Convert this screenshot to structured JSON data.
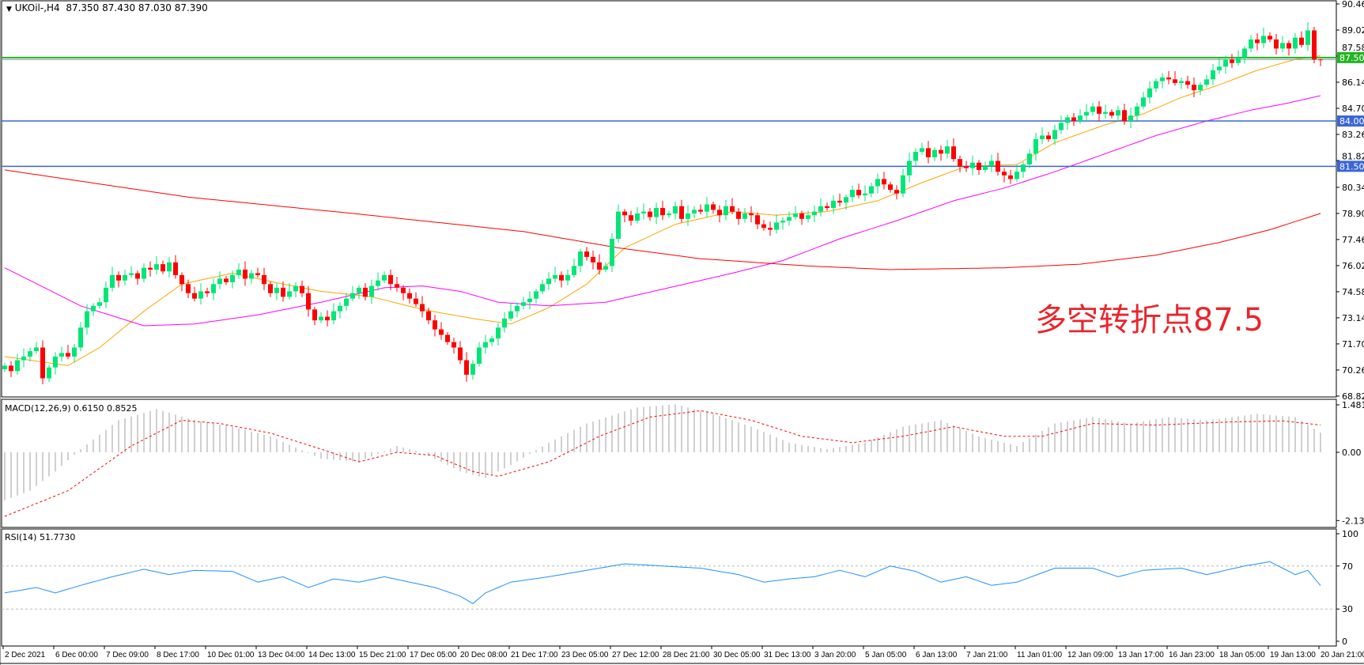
{
  "header": {
    "arrow": "▼",
    "symbol": "UKOil-,H4",
    "ohlc": "87.350 87.430 87.030 87.390"
  },
  "annotation": "多空转折点87.5",
  "macd_label": "MACD(12,26,9) 0.6150 0.8525",
  "rsi_label": "RSI(14) 51.7730",
  "colors": {
    "up": "#00e676",
    "down": "#ff0000",
    "ma_fast": "#ffa500",
    "ma_mid": "#ff00ff",
    "ma_slow": "#ff0000",
    "level_green": "#22b422",
    "level_blue": "#3a66d8",
    "macd_hist": "#c0c0c0",
    "macd_signal": "#ff0000",
    "rsi": "#1e90ff"
  },
  "chart_data": [
    {
      "type": "candlestick",
      "title": "UKOil-,H4",
      "yticks": [
        "90.460",
        "89.020",
        "87.580",
        "86.140",
        "84.700",
        "83.260",
        "81.820",
        "80.340",
        "78.900",
        "77.460",
        "76.020",
        "74.580",
        "73.140",
        "71.700",
        "70.260",
        "68.820"
      ],
      "ylim": [
        68.82,
        90.46
      ],
      "xticks": [
        "2 Dec 2021",
        "6 Dec 00:00",
        "7 Dec 09:00",
        "8 Dec 17:00",
        "10 Dec 01:00",
        "13 Dec 04:00",
        "14 Dec 13:00",
        "15 Dec 21:00",
        "17 Dec 05:00",
        "20 Dec 08:00",
        "21 Dec 17:00",
        "23 Dec 05:00",
        "27 Dec 12:00",
        "28 Dec 21:00",
        "30 Dec 05:00",
        "31 Dec 13:00",
        "3 Jan 20:00",
        "5 Jan 05:00",
        "6 Jan 13:00",
        "7 Jan 21:00",
        "11 Jan 01:00",
        "12 Jan 09:00",
        "13 Jan 17:00",
        "16 Jan 23:00",
        "18 Jan 05:00",
        "19 Jan 13:00",
        "20 Jan 21:00"
      ],
      "last": {
        "open": 87.35,
        "high": 87.43,
        "low": 87.03,
        "close": 87.39
      },
      "closes": [
        70.5,
        70.2,
        70.8,
        71.0,
        71.3,
        71.5,
        69.8,
        70.4,
        71.0,
        71.2,
        71.0,
        71.5,
        72.6,
        73.5,
        73.8,
        74.0,
        74.8,
        75.5,
        75.2,
        75.5,
        75.6,
        75.3,
        75.9,
        75.8,
        76.1,
        75.7,
        76.2,
        75.5,
        75.0,
        74.5,
        74.2,
        74.6,
        74.5,
        75.0,
        75.3,
        75.1,
        75.5,
        75.8,
        75.3,
        75.6,
        75.5,
        75.0,
        74.5,
        74.8,
        74.3,
        74.6,
        74.9,
        74.5,
        73.6,
        73.0,
        73.2,
        73.0,
        73.5,
        73.8,
        74.2,
        74.5,
        74.8,
        74.3,
        74.9,
        75.2,
        75.5,
        75.0,
        74.8,
        74.5,
        74.2,
        73.9,
        73.5,
        73.0,
        72.5,
        72.2,
        71.8,
        71.5,
        70.8,
        70.0,
        70.6,
        71.5,
        71.8,
        72.0,
        72.6,
        73.1,
        73.5,
        73.8,
        74.0,
        74.2,
        74.6,
        75.0,
        75.3,
        75.5,
        75.2,
        75.5,
        76.0,
        76.8,
        76.5,
        76.2,
        75.8,
        76.0,
        77.5,
        79.0,
        78.8,
        78.5,
        78.9,
        79.0,
        78.7,
        79.2,
        78.8,
        78.9,
        79.3,
        78.6,
        78.9,
        79.1,
        79.0,
        79.4,
        79.1,
        78.8,
        79.3,
        79.0,
        78.6,
        78.9,
        78.8,
        78.3,
        78.1,
        78.0,
        78.4,
        78.5,
        78.7,
        78.9,
        78.6,
        78.8,
        79.0,
        79.3,
        79.2,
        79.6,
        79.5,
        79.8,
        80.2,
        79.9,
        80.0,
        80.4,
        80.8,
        80.5,
        80.2,
        80.0,
        81.0,
        81.8,
        82.3,
        82.5,
        82.0,
        82.4,
        82.2,
        82.6,
        81.9,
        81.5,
        81.4,
        81.7,
        81.3,
        81.5,
        81.8,
        81.2,
        81.0,
        80.8,
        81.2,
        81.6,
        82.2,
        83.0,
        83.2,
        83.0,
        83.5,
        83.9,
        84.2,
        84.0,
        84.3,
        84.5,
        84.8,
        84.4,
        84.5,
        84.3,
        84.6,
        84.0,
        84.3,
        84.8,
        85.3,
        85.8,
        86.2,
        86.4,
        86.3,
        86.1,
        86.2,
        86.0,
        85.7,
        86.0,
        86.3,
        86.8,
        87.0,
        87.4,
        87.2,
        87.5,
        88.0,
        88.5,
        88.3,
        88.7,
        88.5,
        88.0,
        88.3,
        88.0,
        88.6,
        88.2,
        89.0,
        87.4,
        87.39
      ],
      "levels": [
        {
          "value": 87.5,
          "label": "87.500",
          "color": "level_green"
        },
        {
          "value": 84.0,
          "label": "84.000",
          "color": "level_blue"
        },
        {
          "value": 81.5,
          "label": "81.500",
          "color": "level_blue"
        }
      ],
      "moving_averages": [
        {
          "color": "ma_fast",
          "points": [
            [
              0,
              71.0
            ],
            [
              10,
              70.5
            ],
            [
              15,
              71.5
            ],
            [
              22,
              73.5
            ],
            [
              28,
              75.0
            ],
            [
              36,
              75.6
            ],
            [
              44,
              75.0
            ],
            [
              50,
              74.6
            ],
            [
              58,
              74.3
            ],
            [
              66,
              73.6
            ],
            [
              74,
              73.1
            ],
            [
              80,
              72.8
            ],
            [
              86,
              73.7
            ],
            [
              92,
              75.0
            ],
            [
              98,
              77.0
            ],
            [
              106,
              78.3
            ],
            [
              115,
              79.0
            ],
            [
              122,
              78.8
            ],
            [
              130,
              79.0
            ],
            [
              138,
              79.6
            ],
            [
              145,
              80.6
            ],
            [
              152,
              81.5
            ],
            [
              160,
              81.6
            ],
            [
              166,
              82.8
            ],
            [
              174,
              83.8
            ],
            [
              180,
              84.4
            ],
            [
              186,
              85.3
            ],
            [
              192,
              86.0
            ],
            [
              198,
              86.8
            ],
            [
              204,
              87.4
            ],
            [
              208,
              87.6
            ]
          ]
        },
        {
          "color": "ma_mid",
          "points": [
            [
              0,
              75.9
            ],
            [
              12,
              73.8
            ],
            [
              22,
              72.7
            ],
            [
              30,
              72.8
            ],
            [
              40,
              73.3
            ],
            [
              50,
              74.0
            ],
            [
              60,
              74.8
            ],
            [
              66,
              74.9
            ],
            [
              72,
              74.6
            ],
            [
              78,
              74.0
            ],
            [
              86,
              73.8
            ],
            [
              95,
              74.0
            ],
            [
              105,
              74.8
            ],
            [
              115,
              75.6
            ],
            [
              123,
              76.3
            ],
            [
              132,
              77.5
            ],
            [
              141,
              78.5
            ],
            [
              150,
              79.6
            ],
            [
              158,
              80.3
            ],
            [
              166,
              81.2
            ],
            [
              174,
              82.2
            ],
            [
              182,
              83.2
            ],
            [
              190,
              84.0
            ],
            [
              197,
              84.6
            ],
            [
              203,
              85.0
            ],
            [
              208,
              85.4
            ]
          ]
        },
        {
          "color": "ma_slow",
          "points": [
            [
              0,
              81.3
            ],
            [
              29,
              79.8
            ],
            [
              55,
              78.9
            ],
            [
              82,
              77.9
            ],
            [
              97,
              77.0
            ],
            [
              110,
              76.4
            ],
            [
              127,
              76.0
            ],
            [
              140,
              75.8
            ],
            [
              158,
              75.9
            ],
            [
              170,
              76.1
            ],
            [
              182,
              76.6
            ],
            [
              192,
              77.3
            ],
            [
              200,
              78.0
            ],
            [
              208,
              78.9
            ]
          ]
        }
      ]
    },
    {
      "type": "bar+line",
      "title": "MACD(12,26,9)",
      "yticks": [
        "1.4815",
        "0.00",
        "-2.1313"
      ],
      "ylim": [
        -2.1313,
        1.4815
      ],
      "main": [
        [
          0,
          -1.5
        ],
        [
          4,
          -1.2
        ],
        [
          8,
          -0.6
        ],
        [
          12,
          0.1
        ],
        [
          18,
          1.0
        ],
        [
          24,
          1.35
        ],
        [
          30,
          1.0
        ],
        [
          36,
          0.8
        ],
        [
          42,
          0.5
        ],
        [
          50,
          -0.2
        ],
        [
          56,
          -0.3
        ],
        [
          62,
          0.2
        ],
        [
          66,
          0.0
        ],
        [
          72,
          -0.6
        ],
        [
          76,
          -0.8
        ],
        [
          80,
          -0.4
        ],
        [
          86,
          0.3
        ],
        [
          92,
          0.9
        ],
        [
          100,
          1.4
        ],
        [
          106,
          1.5
        ],
        [
          112,
          1.2
        ],
        [
          118,
          0.8
        ],
        [
          124,
          0.3
        ],
        [
          130,
          0.1
        ],
        [
          136,
          0.3
        ],
        [
          142,
          0.8
        ],
        [
          148,
          1.0
        ],
        [
          154,
          0.5
        ],
        [
          160,
          0.2
        ],
        [
          166,
          0.9
        ],
        [
          172,
          1.1
        ],
        [
          178,
          0.9
        ],
        [
          184,
          1.1
        ],
        [
          190,
          1.0
        ],
        [
          198,
          1.2
        ],
        [
          204,
          1.1
        ],
        [
          208,
          0.615
        ]
      ],
      "signal": [
        [
          0,
          -2.0
        ],
        [
          10,
          -1.2
        ],
        [
          20,
          0.2
        ],
        [
          28,
          1.0
        ],
        [
          34,
          0.9
        ],
        [
          42,
          0.6
        ],
        [
          50,
          0.1
        ],
        [
          56,
          -0.3
        ],
        [
          62,
          0.0
        ],
        [
          68,
          -0.1
        ],
        [
          74,
          -0.6
        ],
        [
          78,
          -0.75
        ],
        [
          86,
          -0.3
        ],
        [
          94,
          0.5
        ],
        [
          102,
          1.1
        ],
        [
          110,
          1.3
        ],
        [
          118,
          1.0
        ],
        [
          126,
          0.5
        ],
        [
          134,
          0.3
        ],
        [
          142,
          0.5
        ],
        [
          150,
          0.8
        ],
        [
          158,
          0.5
        ],
        [
          164,
          0.5
        ],
        [
          172,
          0.9
        ],
        [
          182,
          0.85
        ],
        [
          194,
          0.95
        ],
        [
          202,
          0.98
        ],
        [
          208,
          0.8525
        ]
      ]
    },
    {
      "type": "line",
      "title": "RSI(14)",
      "yticks": [
        "100",
        "70",
        "30",
        "0"
      ],
      "ylim": [
        0,
        100
      ],
      "levels": [
        70,
        30
      ],
      "values": [
        [
          0,
          45
        ],
        [
          5,
          50
        ],
        [
          8,
          45
        ],
        [
          12,
          52
        ],
        [
          17,
          60
        ],
        [
          22,
          67
        ],
        [
          26,
          62
        ],
        [
          30,
          66
        ],
        [
          36,
          65
        ],
        [
          40,
          55
        ],
        [
          44,
          60
        ],
        [
          48,
          50
        ],
        [
          52,
          58
        ],
        [
          56,
          55
        ],
        [
          60,
          60
        ],
        [
          64,
          55
        ],
        [
          68,
          50
        ],
        [
          72,
          42
        ],
        [
          74,
          35
        ],
        [
          76,
          45
        ],
        [
          80,
          55
        ],
        [
          86,
          60
        ],
        [
          92,
          66
        ],
        [
          98,
          72
        ],
        [
          104,
          70
        ],
        [
          110,
          68
        ],
        [
          116,
          62
        ],
        [
          120,
          55
        ],
        [
          124,
          58
        ],
        [
          128,
          60
        ],
        [
          132,
          66
        ],
        [
          136,
          60
        ],
        [
          140,
          70
        ],
        [
          144,
          65
        ],
        [
          148,
          55
        ],
        [
          152,
          60
        ],
        [
          156,
          52
        ],
        [
          160,
          55
        ],
        [
          166,
          68
        ],
        [
          172,
          68
        ],
        [
          176,
          60
        ],
        [
          180,
          66
        ],
        [
          186,
          68
        ],
        [
          190,
          62
        ],
        [
          196,
          70
        ],
        [
          200,
          74
        ],
        [
          204,
          62
        ],
        [
          206,
          66
        ],
        [
          208,
          51.77
        ]
      ]
    }
  ]
}
